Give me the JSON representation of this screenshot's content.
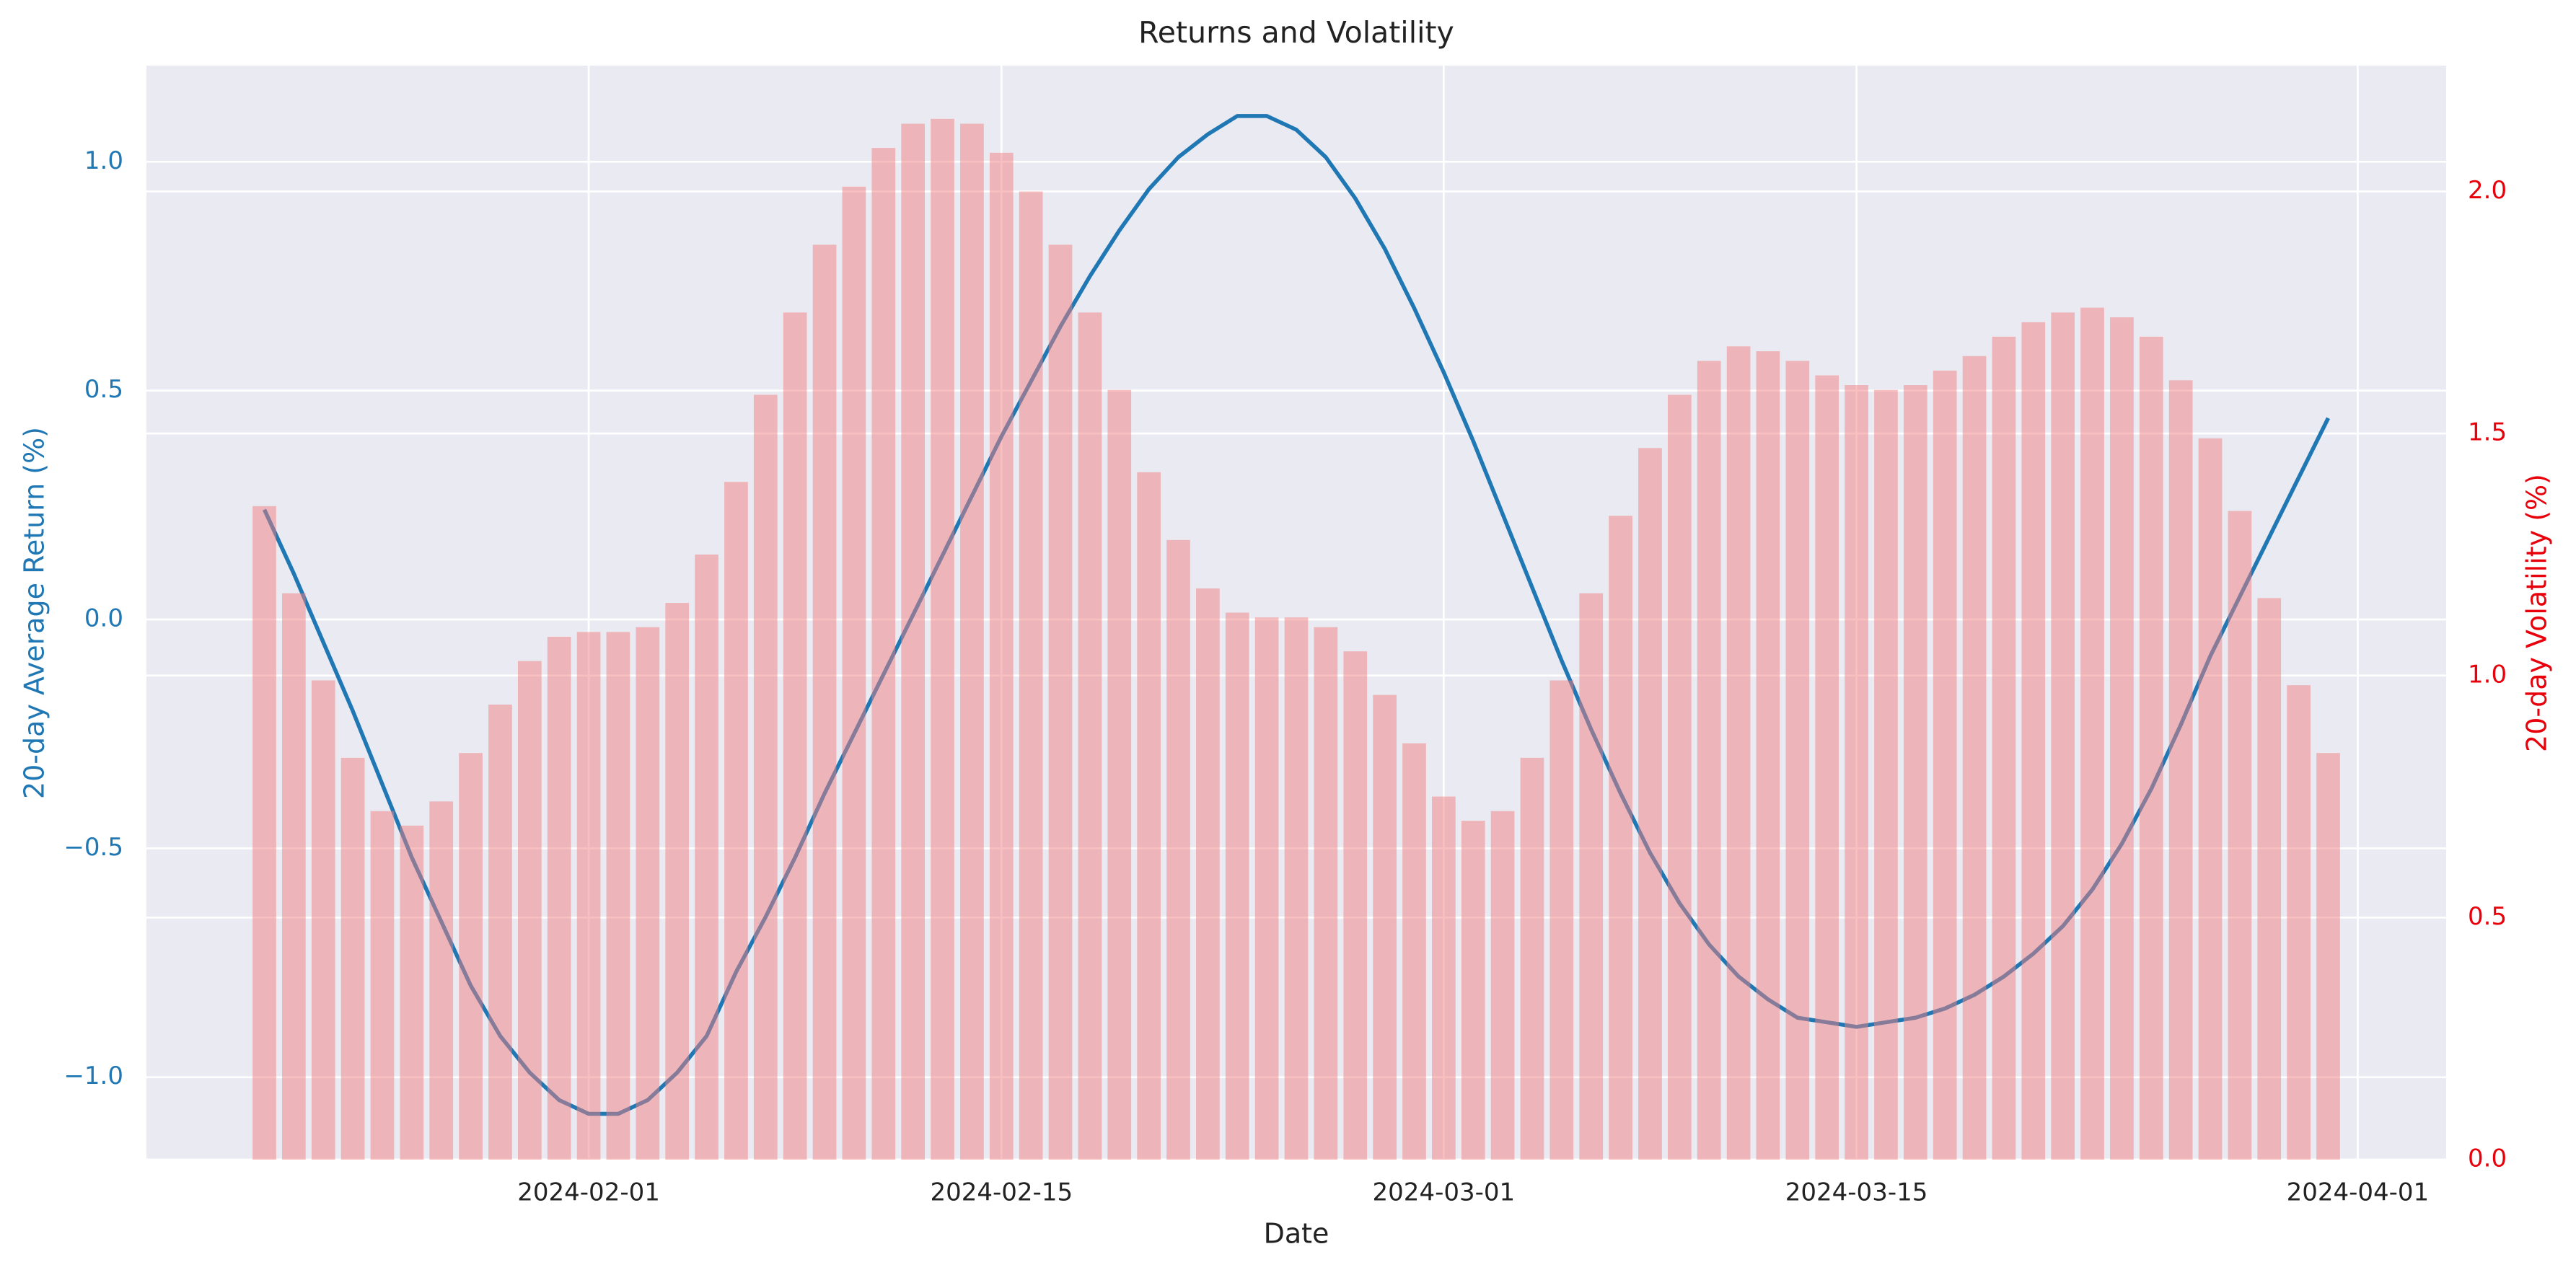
{
  "chart_data": {
    "type": "combo",
    "title": "Returns and Volatility",
    "xlabel": "Date",
    "ylabel": "20-day Average Return (%)",
    "y2label": "20-day Volatility (%)",
    "y_color": "#1f77b4",
    "y2_color": "#e8000b",
    "grid": true,
    "x": [
      "2024-01-21",
      "2024-01-22",
      "2024-01-23",
      "2024-01-24",
      "2024-01-25",
      "2024-01-26",
      "2024-01-27",
      "2024-01-28",
      "2024-01-29",
      "2024-01-30",
      "2024-01-31",
      "2024-02-01",
      "2024-02-02",
      "2024-02-03",
      "2024-02-04",
      "2024-02-05",
      "2024-02-06",
      "2024-02-07",
      "2024-02-08",
      "2024-02-09",
      "2024-02-10",
      "2024-02-11",
      "2024-02-12",
      "2024-02-13",
      "2024-02-14",
      "2024-02-15",
      "2024-02-16",
      "2024-02-17",
      "2024-02-18",
      "2024-02-19",
      "2024-02-20",
      "2024-02-21",
      "2024-02-22",
      "2024-02-23",
      "2024-02-24",
      "2024-02-25",
      "2024-02-26",
      "2024-02-27",
      "2024-02-28",
      "2024-02-29",
      "2024-03-01",
      "2024-03-02",
      "2024-03-03",
      "2024-03-04",
      "2024-03-05",
      "2024-03-06",
      "2024-03-07",
      "2024-03-08",
      "2024-03-09",
      "2024-03-10",
      "2024-03-11",
      "2024-03-12",
      "2024-03-13",
      "2024-03-14",
      "2024-03-15",
      "2024-03-16",
      "2024-03-17",
      "2024-03-18",
      "2024-03-19",
      "2024-03-20",
      "2024-03-21",
      "2024-03-22",
      "2024-03-23",
      "2024-03-24",
      "2024-03-25",
      "2024-03-26",
      "2024-03-27",
      "2024-03-28",
      "2024-03-29",
      "2024-03-30",
      "2024-03-31"
    ],
    "xlim": [
      "2024-01-17",
      "2024-04-04"
    ],
    "xticks": [
      "2024-02-01",
      "2024-02-15",
      "2024-03-01",
      "2024-03-15",
      "2024-04-01"
    ],
    "ylim": [
      -1.18,
      1.21
    ],
    "yticks": [
      {
        "value": -1,
        "label": "−1.0"
      },
      {
        "value": -0.5,
        "label": "−0.5"
      },
      {
        "value": 0,
        "label": "0.0"
      },
      0.5,
      {
        "value": 1,
        "label": "1.0"
      }
    ],
    "y2lim": [
      0,
      2.26
    ],
    "y2ticks": [
      {
        "value": 0,
        "label": "0.0"
      },
      0.5,
      {
        "value": 1,
        "label": "1.0"
      },
      1.5,
      {
        "value": 2,
        "label": "2.0"
      }
    ],
    "series": [
      {
        "type": "line",
        "color": "#1f77b4",
        "values": [
          0.24,
          0.1,
          -0.05,
          -0.2,
          -0.36,
          -0.52,
          -0.66,
          -0.8,
          -0.91,
          -0.99,
          -1.05,
          -1.08,
          -1.08,
          -1.05,
          -0.99,
          -0.91,
          -0.77,
          -0.65,
          -0.52,
          -0.38,
          -0.25,
          -0.12,
          0.01,
          0.14,
          0.27,
          0.4,
          0.52,
          0.64,
          0.75,
          0.85,
          0.94,
          1.01,
          1.06,
          1.1,
          1.1,
          1.07,
          1.01,
          0.92,
          0.81,
          0.68,
          0.54,
          0.39,
          0.23,
          0.07,
          -0.09,
          -0.24,
          -0.38,
          -0.51,
          -0.62,
          -0.71,
          -0.78,
          -0.83,
          -0.87,
          -0.88,
          -0.89,
          -0.88,
          -0.87,
          -0.85,
          -0.82,
          -0.78,
          -0.73,
          -0.67,
          -0.59,
          -0.49,
          -0.37,
          -0.23,
          -0.08,
          0.05,
          0.18,
          0.31,
          0.44
        ]
      },
      {
        "type": "bar",
        "axis": "y2",
        "color": "#f08080",
        "values": [
          1.35,
          1.17,
          0.99,
          0.83,
          0.72,
          0.69,
          0.74,
          0.84,
          0.94,
          1.03,
          1.08,
          1.09,
          1.09,
          1.1,
          1.15,
          1.25,
          1.4,
          1.58,
          1.75,
          1.89,
          2.01,
          2.09,
          2.14,
          2.15,
          2.14,
          2.08,
          2.0,
          1.89,
          1.75,
          1.59,
          1.42,
          1.28,
          1.18,
          1.13,
          1.12,
          1.12,
          1.1,
          1.05,
          0.96,
          0.86,
          0.75,
          0.7,
          0.72,
          0.83,
          0.99,
          1.17,
          1.33,
          1.47,
          1.58,
          1.65,
          1.68,
          1.67,
          1.65,
          1.62,
          1.6,
          1.59,
          1.6,
          1.63,
          1.66,
          1.7,
          1.73,
          1.75,
          1.76,
          1.74,
          1.7,
          1.61,
          1.49,
          1.34,
          1.16,
          0.98,
          0.84
        ]
      }
    ]
  }
}
